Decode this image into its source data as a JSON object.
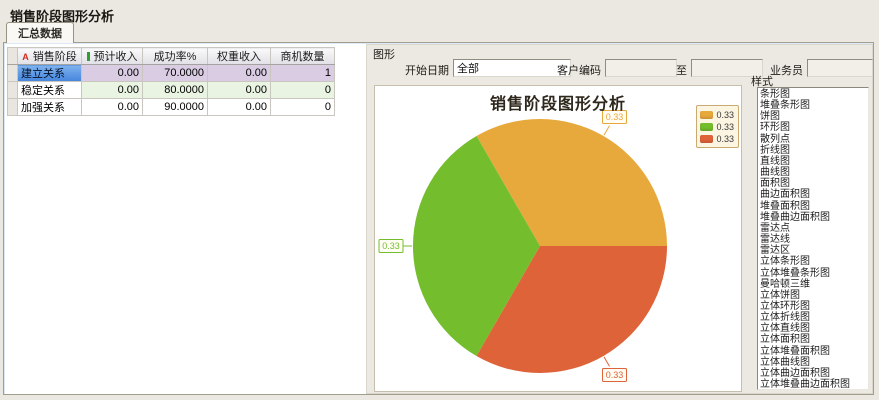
{
  "window": {
    "title": "销售阶段图形分析"
  },
  "tabs": [
    {
      "label": "汇总数据",
      "active": true
    }
  ],
  "table": {
    "columns": [
      {
        "label": "销售阶段",
        "type_icon": "A",
        "type_icon_color": "#D42B20"
      },
      {
        "label": "预计收入",
        "type_icon": "numeric-bar",
        "type_icon_color": "#2F9E38"
      },
      {
        "label": "成功率%"
      },
      {
        "label": "权重收入"
      },
      {
        "label": "商机数量"
      }
    ],
    "rows": [
      {
        "cells": [
          "建立关系",
          "0.00",
          "70.0000",
          "0.00",
          "1"
        ],
        "selected": true,
        "tint": "lavender"
      },
      {
        "cells": [
          "稳定关系",
          "0.00",
          "80.0000",
          "0.00",
          "0"
        ],
        "selected": false,
        "tint": "green"
      },
      {
        "cells": [
          "加强关系",
          "0.00",
          "90.0000",
          "0.00",
          "0"
        ],
        "selected": false,
        "tint": "white"
      }
    ]
  },
  "filters": {
    "group_label": "图形",
    "start_date_label": "开始日期",
    "start_date_value": "全部",
    "customer_code_label": "客户编码",
    "customer_code_from": "",
    "to_label": "至",
    "customer_code_to": "",
    "salesperson_label": "业务员",
    "salesperson_value": ""
  },
  "chart_data": {
    "type": "pie",
    "title": "销售阶段图形分析",
    "values": [
      0.33,
      0.33,
      0.33
    ],
    "slice_labels": [
      "0.33",
      "0.33",
      "0.33"
    ],
    "colors": [
      "#E8A93C",
      "#74BE2D",
      "#DF6339"
    ],
    "legend": [
      "0.33",
      "0.33",
      "0.33"
    ],
    "legend_position": "top-right",
    "start_angle_deg": 0,
    "direction": "counterclockwise"
  },
  "style_panel": {
    "label": "样式",
    "items": [
      "条形图",
      "堆叠条形图",
      "饼图",
      "环形图",
      "散列点",
      "折线图",
      "直线图",
      "曲线图",
      "面积图",
      "曲边面积图",
      "堆叠面积图",
      "堆叠曲边面积图",
      "雷达点",
      "雷达线",
      "雷达区",
      "立体条形图",
      "立体堆叠条形图",
      "曼哈顿三维",
      "立体饼图",
      "立体环形图",
      "立体折线图",
      "立体直线图",
      "立体面积图",
      "立体堆叠面积图",
      "立体曲线图",
      "立体曲边面积图",
      "立体堆叠曲边面积图"
    ]
  }
}
